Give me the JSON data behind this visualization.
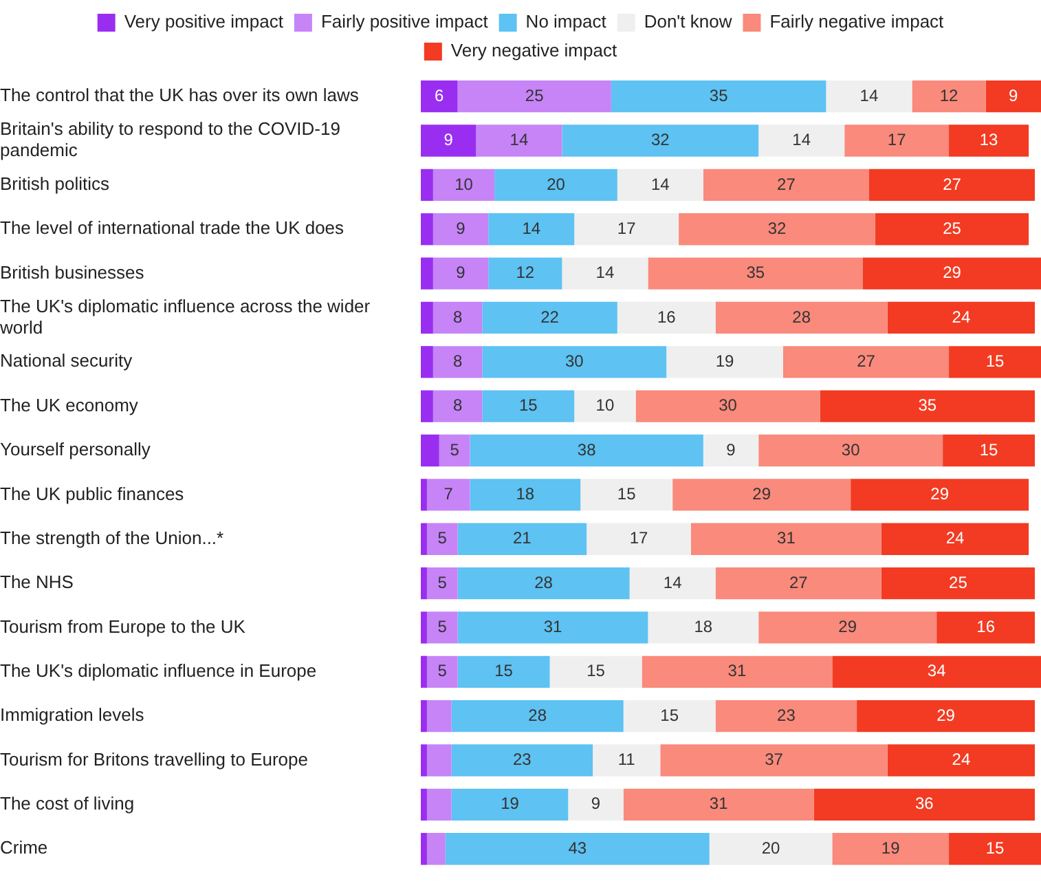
{
  "chart_data": {
    "type": "bar",
    "orientation": "horizontal",
    "stacked": true,
    "legend": "top",
    "tick_labels": "y",
    "grid": false,
    "data_labels": true,
    "xlim": [
      0,
      101
    ],
    "categories": [
      "The control that the UK has over its own laws",
      "Britain's ability to respond to the COVID-19 pandemic",
      "British politics",
      "The level of international trade the UK does",
      "British businesses",
      "The UK's diplomatic influence across the wider world",
      "National security",
      "The UK economy",
      "Yourself personally",
      "The UK public finances",
      "The strength of the Union...*",
      "The NHS",
      "Tourism from Europe to the UK",
      "The UK's diplomatic influence in Europe",
      "Immigration levels",
      "Tourism for Britons travelling to Europe",
      "The cost of living",
      "Crime"
    ],
    "series": [
      {
        "name": "Very positive impact",
        "color": "#9a2ef0",
        "values": [
          6,
          9,
          2,
          2,
          2,
          2,
          2,
          2,
          3,
          1,
          1,
          1,
          1,
          1,
          1,
          1,
          1,
          1
        ],
        "value_labels": [
          "6",
          "9",
          null,
          null,
          null,
          null,
          null,
          null,
          null,
          null,
          null,
          null,
          null,
          null,
          null,
          null,
          null,
          null
        ]
      },
      {
        "name": "Fairly positive impact",
        "color": "#c684f7",
        "values": [
          25,
          14,
          10,
          9,
          9,
          8,
          8,
          8,
          5,
          7,
          5,
          5,
          5,
          5,
          4,
          4,
          4,
          3
        ],
        "value_labels": [
          "25",
          "14",
          "10",
          "9",
          "9",
          "8",
          "8",
          "8",
          "5",
          "7",
          "5",
          "5",
          "5",
          "5",
          null,
          null,
          null,
          null
        ]
      },
      {
        "name": "No impact",
        "color": "#5ec2f2",
        "values": [
          35,
          32,
          20,
          14,
          12,
          22,
          30,
          15,
          38,
          18,
          21,
          28,
          31,
          15,
          28,
          23,
          19,
          43
        ]
      },
      {
        "name": "Don't know",
        "color": "#efefef",
        "values": [
          14,
          14,
          14,
          17,
          14,
          16,
          19,
          10,
          9,
          15,
          17,
          14,
          18,
          15,
          15,
          11,
          9,
          20
        ]
      },
      {
        "name": "Fairly negative impact",
        "color": "#f98a7c",
        "values": [
          12,
          17,
          27,
          32,
          35,
          28,
          27,
          30,
          30,
          29,
          31,
          27,
          29,
          31,
          23,
          37,
          31,
          19
        ]
      },
      {
        "name": "Very negative impact",
        "color": "#f23b22",
        "values": [
          9,
          13,
          27,
          25,
          29,
          24,
          15,
          35,
          15,
          29,
          24,
          25,
          16,
          34,
          29,
          24,
          36,
          15
        ]
      }
    ]
  }
}
